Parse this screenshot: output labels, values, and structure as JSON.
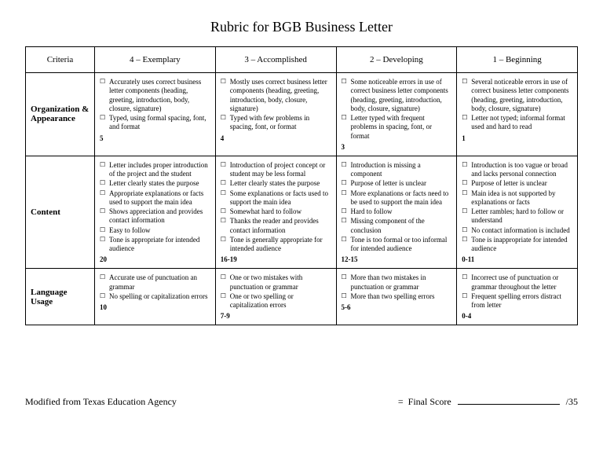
{
  "title": "Rubric for BGB Business Letter",
  "headers": {
    "criteria": "Criteria",
    "c4": "4 – Exemplary",
    "c3": "3 – Accomplished",
    "c2": "2 – Developing",
    "c1": "1 – Beginning"
  },
  "rows": [
    {
      "criteria": "Organization & Appearance",
      "c4": {
        "items": [
          "Accurately uses correct business letter components (heading, greeting, introduction, body, closure, signature)",
          "Typed, using formal spacing, font, and format"
        ],
        "score": "5"
      },
      "c3": {
        "items": [
          "Mostly uses correct business letter components (heading, greeting, introduction, body, closure, signature)",
          "Typed with few problems in spacing, font, or format"
        ],
        "score": "4"
      },
      "c2": {
        "items": [
          "Some noticeable errors in use of correct business letter components (heading, greeting, introduction, body, closure, signature)",
          "Letter typed with frequent problems in spacing, font, or format"
        ],
        "score": "3"
      },
      "c1": {
        "items": [
          "Several noticeable errors in use of correct business letter components (heading, greeting, introduction, body, closure, signature)",
          "Letter not typed; informal format used and hard to read"
        ],
        "score": "1"
      }
    },
    {
      "criteria": "Content",
      "c4": {
        "items": [
          "Letter includes proper introduction of the project and the student",
          "Letter clearly states the purpose",
          "Appropriate explanations or facts used to support the main idea",
          "Shows appreciation and provides contact information",
          "Easy to follow",
          "Tone is appropriate for intended audience"
        ],
        "score": "20"
      },
      "c3": {
        "items": [
          "Introduction of project concept or student may be less formal",
          "Letter clearly states the purpose",
          "Some explanations or facts used to support the main idea",
          "Somewhat hard to follow",
          "Thanks the reader and provides contact information",
          "Tone is generally appropriate for intended audience"
        ],
        "score": "16-19"
      },
      "c2": {
        "items": [
          "Introduction is missing a component",
          "Purpose of letter is unclear",
          "More explanations or facts need to be used to support the main idea",
          "Hard to follow",
          "Missing component of the conclusion",
          "Tone is too formal or too informal for intended audience"
        ],
        "score": "12-15"
      },
      "c1": {
        "items": [
          "Introduction is too vague or broad and lacks personal connection",
          "Purpose of letter is unclear",
          "Main idea is not supported by explanations or facts",
          "Letter rambles; hard to follow or understand",
          "No contact information is included",
          "Tone is inappropriate for intended audience"
        ],
        "score": "0-11"
      }
    },
    {
      "criteria": "Language Usage",
      "c4": {
        "items": [
          "Accurate use of punctuation an grammar",
          "No spelling or capitalization errors"
        ],
        "score": "10"
      },
      "c3": {
        "items": [
          "One or two mistakes with punctuation or grammar",
          "One or two spelling or capitalization errors"
        ],
        "score": "7-9"
      },
      "c2": {
        "items": [
          "More than two mistakes in punctuation or grammar",
          "More than two spelling errors"
        ],
        "score": "5-6"
      },
      "c1": {
        "items": [
          "Incorrect use of punctuation or grammar throughout the letter",
          "Frequent spelling errors distract from letter"
        ],
        "score": "0-4"
      }
    }
  ],
  "footer": {
    "left": "Modified from Texas Education Agency",
    "equals": "=",
    "finalScoreLabel": "Final Score",
    "outOf": "/35"
  }
}
